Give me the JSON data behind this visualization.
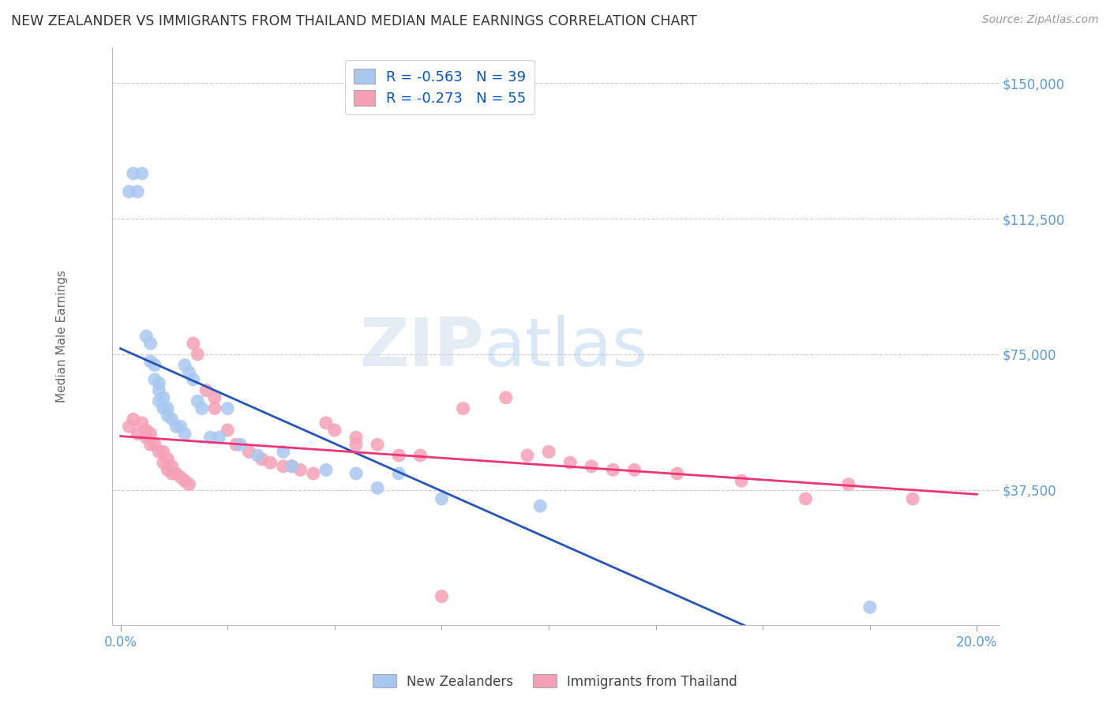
{
  "title": "NEW ZEALANDER VS IMMIGRANTS FROM THAILAND MEDIAN MALE EARNINGS CORRELATION CHART",
  "source": "Source: ZipAtlas.com",
  "ylabel": "Median Male Earnings",
  "ytick_labels": [
    "$150,000",
    "$112,500",
    "$75,000",
    "$37,500"
  ],
  "ytick_vals": [
    150000,
    112500,
    75000,
    37500
  ],
  "ylim": [
    0,
    160000
  ],
  "xlim": [
    -0.002,
    0.205
  ],
  "blue_color": "#A8C8F0",
  "pink_color": "#F5A0B5",
  "line_blue": "#2255BB",
  "line_pink": "#EE3377",
  "title_color": "#333333",
  "axis_label_color": "#666666",
  "ytick_color": "#5B9BD5",
  "xtick_color": "#5B9BD5",
  "grid_color": "#CCCCCC",
  "legend_color": "#0055CC",
  "R_nz": "-0.563",
  "N_nz": "39",
  "R_thai": "-0.273",
  "N_thai": "55",
  "watermark_zip": "ZIP",
  "watermark_atlas": "atlas",
  "nz_x": [
    0.002,
    0.003,
    0.004,
    0.005,
    0.006,
    0.007,
    0.007,
    0.008,
    0.008,
    0.009,
    0.009,
    0.009,
    0.01,
    0.01,
    0.011,
    0.011,
    0.012,
    0.013,
    0.014,
    0.015,
    0.015,
    0.016,
    0.017,
    0.018,
    0.019,
    0.021,
    0.023,
    0.025,
    0.028,
    0.032,
    0.038,
    0.04,
    0.048,
    0.055,
    0.06,
    0.065,
    0.075,
    0.098,
    0.175
  ],
  "nz_y": [
    120000,
    125000,
    120000,
    125000,
    80000,
    78000,
    73000,
    72000,
    68000,
    67000,
    65000,
    62000,
    63000,
    60000,
    60000,
    58000,
    57000,
    55000,
    55000,
    53000,
    72000,
    70000,
    68000,
    62000,
    60000,
    52000,
    52000,
    60000,
    50000,
    47000,
    48000,
    44000,
    43000,
    42000,
    38000,
    42000,
    35000,
    33000,
    5000
  ],
  "thai_x": [
    0.002,
    0.003,
    0.004,
    0.005,
    0.006,
    0.006,
    0.007,
    0.007,
    0.008,
    0.009,
    0.01,
    0.01,
    0.011,
    0.011,
    0.012,
    0.012,
    0.013,
    0.014,
    0.015,
    0.016,
    0.017,
    0.018,
    0.02,
    0.022,
    0.022,
    0.025,
    0.027,
    0.03,
    0.033,
    0.035,
    0.038,
    0.04,
    0.042,
    0.045,
    0.048,
    0.05,
    0.055,
    0.055,
    0.06,
    0.065,
    0.07,
    0.075,
    0.08,
    0.09,
    0.095,
    0.1,
    0.105,
    0.11,
    0.115,
    0.12,
    0.13,
    0.145,
    0.16,
    0.17,
    0.185
  ],
  "thai_y": [
    55000,
    57000,
    53000,
    56000,
    54000,
    52000,
    53000,
    50000,
    50000,
    48000,
    48000,
    45000,
    46000,
    43000,
    44000,
    42000,
    42000,
    41000,
    40000,
    39000,
    78000,
    75000,
    65000,
    63000,
    60000,
    54000,
    50000,
    48000,
    46000,
    45000,
    44000,
    44000,
    43000,
    42000,
    56000,
    54000,
    52000,
    50000,
    50000,
    47000,
    47000,
    8000,
    60000,
    63000,
    47000,
    48000,
    45000,
    44000,
    43000,
    43000,
    42000,
    40000,
    35000,
    39000,
    35000
  ]
}
